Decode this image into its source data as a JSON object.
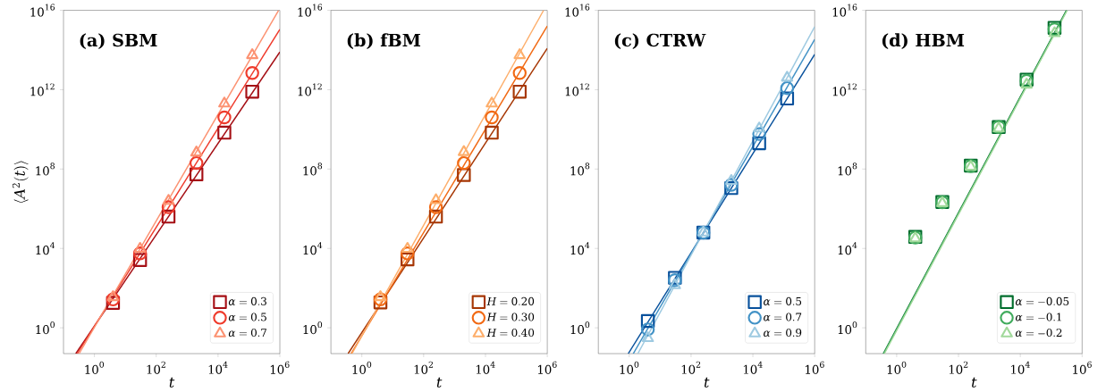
{
  "chart_data": [
    {
      "type": "scatter",
      "title": "(a) SBM",
      "xlabel": "t",
      "ylabel": "\\langle A^2(t)\\rangle",
      "log": "xy",
      "legend": "bottom right",
      "xlim": [
        0.1,
        1000000.0
      ],
      "ylim": [
        0.05,
        1e+16
      ],
      "xticks": [
        {
          "value": 1,
          "label": "10^{0}"
        },
        {
          "value": 100,
          "label": "10^{2}"
        },
        {
          "value": 10000,
          "label": "10^{4}"
        },
        {
          "value": 1000000.0,
          "label": "10^{6}"
        }
      ],
      "yticks": [
        {
          "value": 1,
          "label": "10^{0}"
        },
        {
          "value": 10000,
          "label": "10^{4}"
        },
        {
          "value": 100000000.0,
          "label": "10^{8}"
        },
        {
          "value": 1000000000000.0,
          "label": "10^{12}"
        },
        {
          "value": 1e+16,
          "label": "10^{16}"
        }
      ],
      "x": [
        4,
        30,
        250,
        2000,
        16000,
        128000
      ],
      "series": [
        {
          "name": "\\alpha=0.3",
          "color": "#a50f15",
          "marker": "square",
          "values": [
            18,
            2600,
            400000.0,
            54000000.0,
            6800000000.0,
            790000000000.0
          ]
        },
        {
          "name": "\\alpha=0.5",
          "color": "#ef3b2c",
          "marker": "circle",
          "values": [
            27,
            5600,
            1200000.0,
            200000000.0,
            40000000000.0,
            6900000000000.0
          ]
        },
        {
          "name": "\\alpha=0.7",
          "color": "#fc9272",
          "marker": "triangle",
          "values": [
            35,
            9500,
            2500000.0,
            680000000.0,
            200000000000.0,
            55000000000000.0
          ]
        },
        {
          "type": "line",
          "color": "#a50f15",
          "marker": "none",
          "x": [
            0.25,
            1000000.0
          ],
          "values": [
            0.05,
            79000000000000.0
          ]
        },
        {
          "type": "line",
          "color": "#ef3b2c",
          "marker": "none",
          "x": [
            0.28,
            1000000.0
          ],
          "values": [
            0.05,
            1100000000000000.0
          ]
        },
        {
          "type": "line",
          "color": "#fc9272",
          "marker": "none",
          "x": [
            0.32,
            910000.0
          ],
          "values": [
            0.05,
            1e+16
          ]
        }
      ]
    },
    {
      "type": "scatter",
      "title": "(b) fBM",
      "xlabel": "t",
      "log": "xy",
      "legend": "bottom right",
      "xlim": [
        0.1,
        1000000.0
      ],
      "ylim": [
        0.05,
        1e+16
      ],
      "xticks": [
        {
          "value": 1,
          "label": "10^{0}"
        },
        {
          "value": 100,
          "label": "10^{2}"
        },
        {
          "value": 10000,
          "label": "10^{4}"
        },
        {
          "value": 1000000.0,
          "label": "10^{6}"
        }
      ],
      "yticks": [
        {
          "value": 1,
          "label": "10^{0}"
        },
        {
          "value": 10000,
          "label": "10^{4}"
        },
        {
          "value": 100000000.0,
          "label": "10^{8}"
        },
        {
          "value": 1000000000000.0,
          "label": "10^{12}"
        },
        {
          "value": 1e+16,
          "label": "10^{16}"
        }
      ],
      "x": [
        4,
        30,
        250,
        2000,
        16000,
        128000
      ],
      "series": [
        {
          "name": "H=0.20",
          "color": "#a63603",
          "marker": "square",
          "values": [
            19,
            2800,
            400000.0,
            50000000.0,
            6800000000.0,
            790000000000.0
          ]
        },
        {
          "name": "H=0.30",
          "color": "#f16913",
          "marker": "circle",
          "values": [
            27,
            5600,
            1200000.0,
            200000000.0,
            40000000000.0,
            6900000000000.0
          ]
        },
        {
          "name": "H=0.40",
          "color": "#fdae6b",
          "marker": "triangle",
          "values": [
            35,
            9500,
            2700000.0,
            720000000.0,
            200000000000.0,
            55000000000000.0
          ]
        },
        {
          "type": "line",
          "color": "#a63603",
          "marker": "none",
          "x": [
            0.36,
            1000000.0
          ],
          "values": [
            0.05,
            120000000000000.0
          ]
        },
        {
          "type": "line",
          "color": "#f16913",
          "marker": "none",
          "x": [
            0.45,
            1000000.0
          ],
          "values": [
            0.05,
            1600000000000000.0
          ]
        },
        {
          "type": "line",
          "color": "#fdae6b",
          "marker": "none",
          "x": [
            0.48,
            760000.0
          ],
          "values": [
            0.05,
            1e+16
          ]
        }
      ]
    },
    {
      "type": "scatter",
      "title": "(c) CTRW",
      "xlabel": "t",
      "log": "xy",
      "legend": "bottom right",
      "xlim": [
        0.1,
        1000000.0
      ],
      "ylim": [
        0.05,
        1e+16
      ],
      "xticks": [
        {
          "value": 1,
          "label": "10^{0}"
        },
        {
          "value": 100,
          "label": "10^{2}"
        },
        {
          "value": 10000,
          "label": "10^{4}"
        },
        {
          "value": 1000000.0,
          "label": "10^{6}"
        }
      ],
      "yticks": [
        {
          "value": 1,
          "label": "10^{0}"
        },
        {
          "value": 10000,
          "label": "10^{4}"
        },
        {
          "value": 100000000.0,
          "label": "10^{8}"
        },
        {
          "value": 1000000000000.0,
          "label": "10^{12}"
        },
        {
          "value": 1e+16,
          "label": "10^{16}"
        }
      ],
      "x": [
        4,
        30,
        250,
        2000,
        16000,
        128000
      ],
      "series": [
        {
          "name": "\\alpha=0.5",
          "color": "#08519c",
          "marker": "square",
          "values": [
            2.2,
            330,
            63000.0,
            11000000.0,
            2000000000.0,
            360000000000.0
          ]
        },
        {
          "name": "\\alpha=0.7",
          "color": "#4292c6",
          "marker": "circle",
          "values": [
            0.83,
            250,
            63000.0,
            16000000.0,
            5800000000.0,
            1200000000000.0
          ]
        },
        {
          "name": "\\alpha=0.9",
          "color": "#9ecae1",
          "marker": "triangle",
          "values": [
            0.3,
            140,
            63000.0,
            25000000.0,
            11000000000.0,
            4000000000000.0
          ]
        },
        {
          "type": "line",
          "color": "#08519c",
          "marker": "none",
          "x": [
            0.93,
            1000000.0
          ],
          "values": [
            0.05,
            60000000000000.0
          ]
        },
        {
          "type": "line",
          "color": "#4292c6",
          "marker": "none",
          "x": [
            1.35,
            1000000.0
          ],
          "values": [
            0.05,
            340000000000000.0
          ]
        },
        {
          "type": "line",
          "color": "#9ecae1",
          "marker": "none",
          "x": [
            1.9,
            1000000.0
          ],
          "values": [
            0.05,
            1500000000000000.0
          ]
        }
      ]
    },
    {
      "type": "scatter",
      "title": "(d) HBM",
      "xlabel": "t",
      "log": "xy",
      "legend": "bottom right",
      "xlim": [
        0.1,
        1000000.0
      ],
      "ylim": [
        0.05,
        1e+16
      ],
      "xticks": [
        {
          "value": 1,
          "label": "10^{0}"
        },
        {
          "value": 100,
          "label": "10^{2}"
        },
        {
          "value": 10000,
          "label": "10^{4}"
        },
        {
          "value": 1000000.0,
          "label": "10^{6}"
        }
      ],
      "yticks": [
        {
          "value": 1,
          "label": "10^{0}"
        },
        {
          "value": 10000,
          "label": "10^{4}"
        },
        {
          "value": 100000000.0,
          "label": "10^{8}"
        },
        {
          "value": 1000000000000.0,
          "label": "10^{12}"
        },
        {
          "value": 1e+16,
          "label": "10^{16}"
        }
      ],
      "x": [
        4,
        30,
        250,
        2000,
        16000,
        128000
      ],
      "series": [
        {
          "name": "\\alpha=-0.05",
          "color": "#006d2c",
          "marker": "square",
          "values": [
            38000.0,
            2200000.0,
            150000000.0,
            13000000000.0,
            3200000000000.0,
            1300000000000000.0
          ]
        },
        {
          "name": "\\alpha=-0.1",
          "color": "#41ab5d",
          "marker": "circle",
          "values": [
            35000.0,
            2100000.0,
            140000000.0,
            13000000000.0,
            2800000000000.0,
            1100000000000000.0
          ]
        },
        {
          "name": "\\alpha=-0.2",
          "color": "#a1d99b",
          "marker": "triangle",
          "values": [
            32000.0,
            1900000.0,
            130000000.0,
            11000000000.0,
            1800000000000.0,
            700000000000000.0
          ]
        },
        {
          "type": "line",
          "color": "#006d2c",
          "marker": "none",
          "x": [
            0.37,
            310000.0
          ],
          "values": [
            0.05,
            1e+16
          ]
        },
        {
          "type": "line",
          "color": "#41ab5d",
          "marker": "none",
          "x": [
            0.38,
            320000.0
          ],
          "values": [
            0.05,
            1e+16
          ]
        },
        {
          "type": "line",
          "color": "#a1d99b",
          "marker": "none",
          "x": [
            0.4,
            330000.0
          ],
          "values": [
            0.05,
            1e+16
          ]
        }
      ]
    }
  ]
}
